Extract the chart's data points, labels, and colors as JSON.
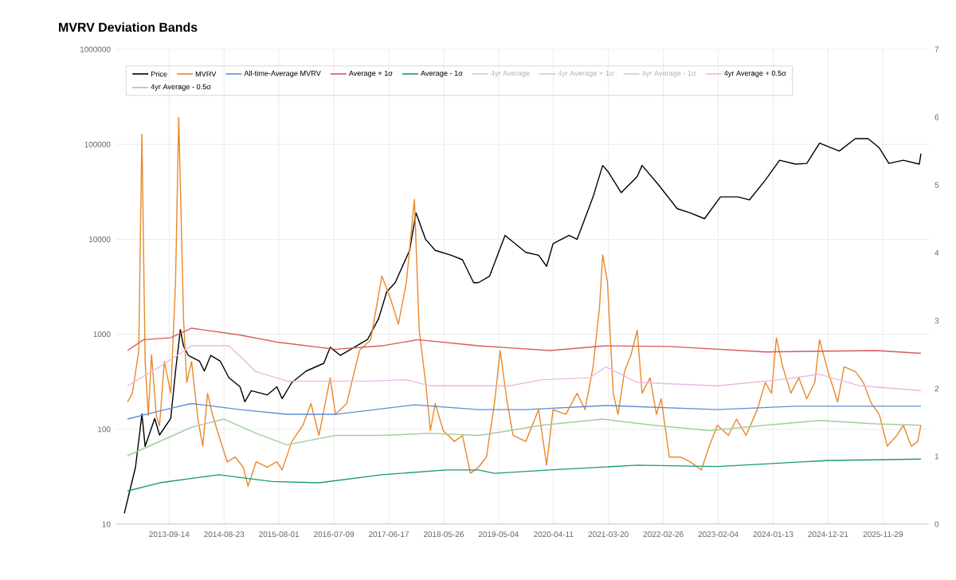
{
  "chart_data": {
    "type": "line",
    "title": "MVRV Deviation Bands",
    "xlim": [
      "2012-10-19",
      "2026-09-12"
    ],
    "xticks": [
      "2013-09-14",
      "2014-08-23",
      "2015-08-01",
      "2016-07-09",
      "2017-06-17",
      "2018-05-26",
      "2019-05-04",
      "2020-04-11",
      "2021-03-20",
      "2022-02-26",
      "2023-02-04",
      "2024-01-13",
      "2024-12-21",
      "2025-11-29"
    ],
    "log": "y",
    "ylim": [
      10,
      1000000
    ],
    "yticks": [
      10,
      100,
      1000,
      10000,
      100000,
      1000000
    ],
    "y2lim": [
      0,
      7
    ],
    "y2ticks": [
      0,
      1,
      2,
      3,
      4,
      5,
      6,
      7
    ],
    "grid": true,
    "legend": "top left",
    "series": [
      {
        "name": "Price",
        "color": "#000000",
        "x": [
          "2012-12-08",
          "2013-02-16",
          "2013-03-28",
          "2013-04-17",
          "2013-06-16",
          "2013-07-16",
          "2013-09-24",
          "2013-10-24",
          "2013-11-23",
          "2013-12-13",
          "2014-01-12",
          "2014-03-23",
          "2014-04-22",
          "2014-06-01",
          "2014-07-31",
          "2014-09-22",
          "2014-12-01",
          "2014-12-31",
          "2015-02-09",
          "2015-05-20",
          "2015-07-19",
          "2015-08-21",
          "2015-10-20",
          "2016-01-18",
          "2016-05-07",
          "2016-06-16",
          "2016-08-18",
          "2017-02-04",
          "2017-04-15",
          "2017-06-04",
          "2017-07-27",
          "2017-10-25",
          "2017-12-04",
          "2018-02-02",
          "2018-04-03",
          "2018-07-12",
          "2018-09-20",
          "2018-11-29",
          "2018-12-29",
          "2019-03-09",
          "2019-06-13",
          "2019-10-21",
          "2020-01-09",
          "2020-02-28",
          "2020-04-08",
          "2020-07-17",
          "2020-09-05",
          "2020-12-14",
          "2021-02-12",
          "2021-03-20",
          "2021-06-08",
          "2021-09-16",
          "2021-10-16",
          "2022-01-24",
          "2022-05-24",
          "2022-08-12",
          "2022-11-10",
          "2023-02-18",
          "2023-06-08",
          "2023-08-17",
          "2023-11-25",
          "2024-02-22",
          "2024-06-01",
          "2024-08-10",
          "2024-10-29",
          "2025-03-01",
          "2025-06-09",
          "2025-08-28",
          "2025-11-06",
          "2026-01-05",
          "2026-04-05",
          "2026-07-14",
          "2026-07-24"
        ],
        "values": [
          13,
          40,
          145,
          66,
          130,
          87,
          130,
          410,
          1120,
          750,
          600,
          520,
          410,
          600,
          520,
          350,
          280,
          195,
          255,
          230,
          280,
          210,
          310,
          410,
          495,
          730,
          600,
          880,
          1470,
          2800,
          3500,
          7650,
          19000,
          10000,
          7650,
          6800,
          6100,
          3500,
          3500,
          4100,
          11000,
          7300,
          6800,
          5200,
          9000,
          11000,
          10000,
          28000,
          60000,
          51000,
          31000,
          46000,
          60000,
          38000,
          21000,
          19000,
          16500,
          28000,
          28000,
          26000,
          42000,
          68000,
          62000,
          63000,
          103000,
          85000,
          115000,
          115000,
          92000,
          63000,
          68000,
          62000,
          80000
        ]
      },
      {
        "name": "MVRV",
        "color": "#e8892c",
        "axis": "y2",
        "x": [
          "2012-12-28",
          "2013-01-27",
          "2013-03-08",
          "2013-03-28",
          "2013-04-17",
          "2013-05-07",
          "2013-05-27",
          "2013-06-26",
          "2013-07-16",
          "2013-08-15",
          "2013-09-24",
          "2013-10-24",
          "2013-11-13",
          "2013-12-13",
          "2014-01-02",
          "2014-02-01",
          "2014-03-13",
          "2014-04-12",
          "2014-05-12",
          "2014-06-11",
          "2014-07-21",
          "2014-09-12",
          "2014-11-01",
          "2014-12-21",
          "2015-01-20",
          "2015-03-11",
          "2015-05-20",
          "2015-07-19",
          "2015-08-21",
          "2015-10-20",
          "2015-12-29",
          "2016-02-17",
          "2016-04-07",
          "2016-06-16",
          "2016-07-19",
          "2016-09-27",
          "2016-12-16",
          "2017-02-24",
          "2017-05-05",
          "2017-06-27",
          "2017-08-16",
          "2017-10-05",
          "2017-11-24",
          "2017-12-24",
          "2018-02-02",
          "2018-03-04",
          "2018-04-03",
          "2018-05-23",
          "2018-08-01",
          "2018-09-20",
          "2018-11-09",
          "2018-12-29",
          "2019-02-17",
          "2019-04-08",
          "2019-05-14",
          "2019-06-23",
          "2019-08-02",
          "2019-10-21",
          "2020-01-09",
          "2020-02-28",
          "2020-04-08",
          "2020-06-27",
          "2020-09-05",
          "2020-10-25",
          "2020-12-14",
          "2021-01-23",
          "2021-02-12",
          "2021-03-14",
          "2021-04-19",
          "2021-05-19",
          "2021-06-28",
          "2021-08-07",
          "2021-09-16",
          "2021-10-16",
          "2021-12-05",
          "2022-01-14",
          "2022-02-13",
          "2022-04-04",
          "2022-06-13",
          "2022-08-12",
          "2022-10-21",
          "2022-12-10",
          "2023-01-29",
          "2023-04-09",
          "2023-05-29",
          "2023-07-28",
          "2023-10-06",
          "2023-11-25",
          "2024-01-03",
          "2024-02-02",
          "2024-03-13",
          "2024-05-02",
          "2024-06-21",
          "2024-08-10",
          "2024-09-29",
          "2024-10-29",
          "2024-12-21",
          "2025-02-19",
          "2025-03-31",
          "2025-06-09",
          "2025-07-29",
          "2025-09-17",
          "2025-11-06",
          "2025-12-26",
          "2026-02-24",
          "2026-04-05",
          "2026-05-25",
          "2026-07-04",
          "2026-07-24"
        ],
        "values": [
          1.8,
          1.93,
          2.55,
          5.75,
          2.4,
          1.6,
          2.5,
          1.6,
          1.45,
          2.4,
          1.93,
          3.57,
          6.0,
          3.03,
          2.09,
          2.4,
          1.55,
          1.15,
          1.93,
          1.62,
          1.31,
          0.92,
          0.99,
          0.84,
          0.56,
          0.92,
          0.84,
          0.92,
          0.8,
          1.22,
          1.46,
          1.78,
          1.31,
          2.16,
          1.62,
          1.78,
          2.56,
          2.72,
          3.66,
          3.33,
          2.95,
          3.57,
          4.79,
          2.86,
          2.09,
          1.38,
          1.78,
          1.38,
          1.22,
          1.31,
          0.75,
          0.84,
          0.99,
          1.78,
          2.56,
          1.85,
          1.31,
          1.22,
          1.69,
          0.87,
          1.69,
          1.62,
          1.93,
          1.69,
          2.32,
          3.19,
          3.97,
          3.57,
          1.93,
          1.62,
          2.25,
          2.49,
          2.86,
          1.93,
          2.16,
          1.62,
          1.85,
          0.99,
          0.99,
          0.92,
          0.8,
          1.15,
          1.46,
          1.31,
          1.55,
          1.31,
          1.69,
          2.09,
          1.93,
          2.75,
          2.32,
          1.93,
          2.16,
          1.85,
          2.09,
          2.72,
          2.25,
          1.8,
          2.32,
          2.25,
          2.09,
          1.78,
          1.62,
          1.15,
          1.31,
          1.46,
          1.15,
          1.22,
          1.46
        ]
      },
      {
        "name": "All-time-Average MVRV",
        "color": "#5b8fd6",
        "axis": "y2",
        "x": [
          "2012-12-28",
          "2013-07-16",
          "2014-02-01",
          "2014-12-01",
          "2015-09-20",
          "2016-07-19",
          "2017-11-24",
          "2018-12-29",
          "2019-10-21",
          "2021-03-04",
          "2023-01-29",
          "2024-06-01",
          "2026-07-24"
        ],
        "values": [
          1.55,
          1.67,
          1.78,
          1.69,
          1.62,
          1.62,
          1.76,
          1.69,
          1.69,
          1.75,
          1.69,
          1.74,
          1.74
        ]
      },
      {
        "name": "Average + 1σ",
        "color": "#d65a5a",
        "axis": "y2",
        "x": [
          "2012-12-28",
          "2013-04-07",
          "2013-09-24",
          "2014-02-01",
          "2014-12-01",
          "2015-08-01",
          "2016-07-19",
          "2017-05-05",
          "2017-12-14",
          "2018-12-29",
          "2019-07-13",
          "2020-03-19",
          "2021-03-04",
          "2022-04-04",
          "2023-11-25",
          "2025-10-17",
          "2026-07-24"
        ],
        "values": [
          2.56,
          2.72,
          2.75,
          2.89,
          2.79,
          2.68,
          2.58,
          2.63,
          2.72,
          2.63,
          2.6,
          2.56,
          2.63,
          2.62,
          2.54,
          2.56,
          2.52
        ]
      },
      {
        "name": "Average - 1σ",
        "color": "#1a9a78",
        "axis": "y2",
        "x": [
          "2012-12-28",
          "2013-07-16",
          "2014-07-21",
          "2015-06-19",
          "2016-04-07",
          "2017-05-05",
          "2018-06-12",
          "2018-12-29",
          "2019-04-08",
          "2020-03-19",
          "2021-09-16",
          "2023-01-29",
          "2024-12-21",
          "2026-07-24"
        ],
        "values": [
          0.49,
          0.61,
          0.73,
          0.63,
          0.61,
          0.73,
          0.8,
          0.8,
          0.75,
          0.8,
          0.87,
          0.85,
          0.94,
          0.96
        ]
      },
      {
        "name": "4yr Average",
        "color": "#cccccc",
        "axis": "y2"
      },
      {
        "name": "4yr Average + 1σ",
        "color": "#cccccc",
        "axis": "y2"
      },
      {
        "name": "4yr Average - 1σ",
        "color": "#cccccc",
        "axis": "y2"
      },
      {
        "name": "4yr Average + 0.5σ",
        "color": "#efb6e6",
        "axis": "y2",
        "x": [
          "2012-12-28",
          "2013-07-16",
          "2014-02-01",
          "2014-09-22",
          "2015-03-11",
          "2015-09-20",
          "2017-02-04",
          "2017-10-05",
          "2018-03-04",
          "2018-12-29",
          "2019-07-13",
          "2020-01-29",
          "2020-11-24",
          "2021-03-04",
          "2021-09-16",
          "2023-01-29",
          "2024-02-22",
          "2024-10-29",
          "2025-07-09",
          "2026-07-24"
        ],
        "values": [
          2.04,
          2.32,
          2.63,
          2.63,
          2.25,
          2.11,
          2.11,
          2.13,
          2.04,
          2.04,
          2.04,
          2.13,
          2.16,
          2.32,
          2.09,
          2.04,
          2.13,
          2.21,
          2.04,
          1.97
        ]
      },
      {
        "name": "4yr Average - 0.5σ",
        "color": "#9fcf9a",
        "axis": "y2",
        "x": [
          "2012-12-28",
          "2013-07-16",
          "2014-02-01",
          "2014-08-23",
          "2015-03-11",
          "2015-09-20",
          "2016-07-19",
          "2017-05-05",
          "2018-03-04",
          "2018-12-29",
          "2019-07-13",
          "2020-01-29",
          "2021-02-12",
          "2021-12-25",
          "2022-12-10",
          "2023-11-25",
          "2024-10-29",
          "2025-10-17",
          "2026-07-24"
        ],
        "values": [
          1.01,
          1.22,
          1.43,
          1.55,
          1.34,
          1.17,
          1.31,
          1.31,
          1.34,
          1.31,
          1.38,
          1.46,
          1.55,
          1.46,
          1.38,
          1.46,
          1.53,
          1.48,
          1.46
        ]
      }
    ]
  }
}
